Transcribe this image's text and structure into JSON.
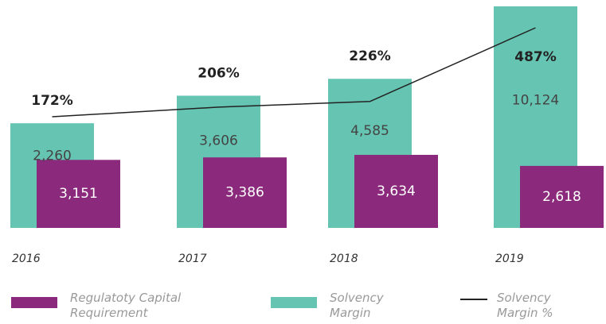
{
  "chart_data": {
    "type": "bar",
    "categories": [
      "2016",
      "2017",
      "2018",
      "2019"
    ],
    "series": [
      {
        "name": "Regulatoty Capital Requirement",
        "color": "#8b2a7c",
        "values": [
          3151,
          3386,
          3634,
          2618
        ],
        "value_labels": [
          "3,151",
          "3,386",
          "3,634",
          "2,618"
        ]
      },
      {
        "name": "Solvency Margin",
        "color": "#66c4b2",
        "values": [
          2260,
          3606,
          4585,
          10124
        ],
        "value_labels": [
          "2,260",
          "3,606",
          "4,585",
          "10,124"
        ]
      },
      {
        "name": "Solvency Margin %",
        "type": "line",
        "color": "#222222",
        "values": [
          172,
          206,
          226,
          487
        ],
        "value_labels": [
          "172%",
          "206%",
          "226%",
          "487%"
        ]
      }
    ]
  }
}
